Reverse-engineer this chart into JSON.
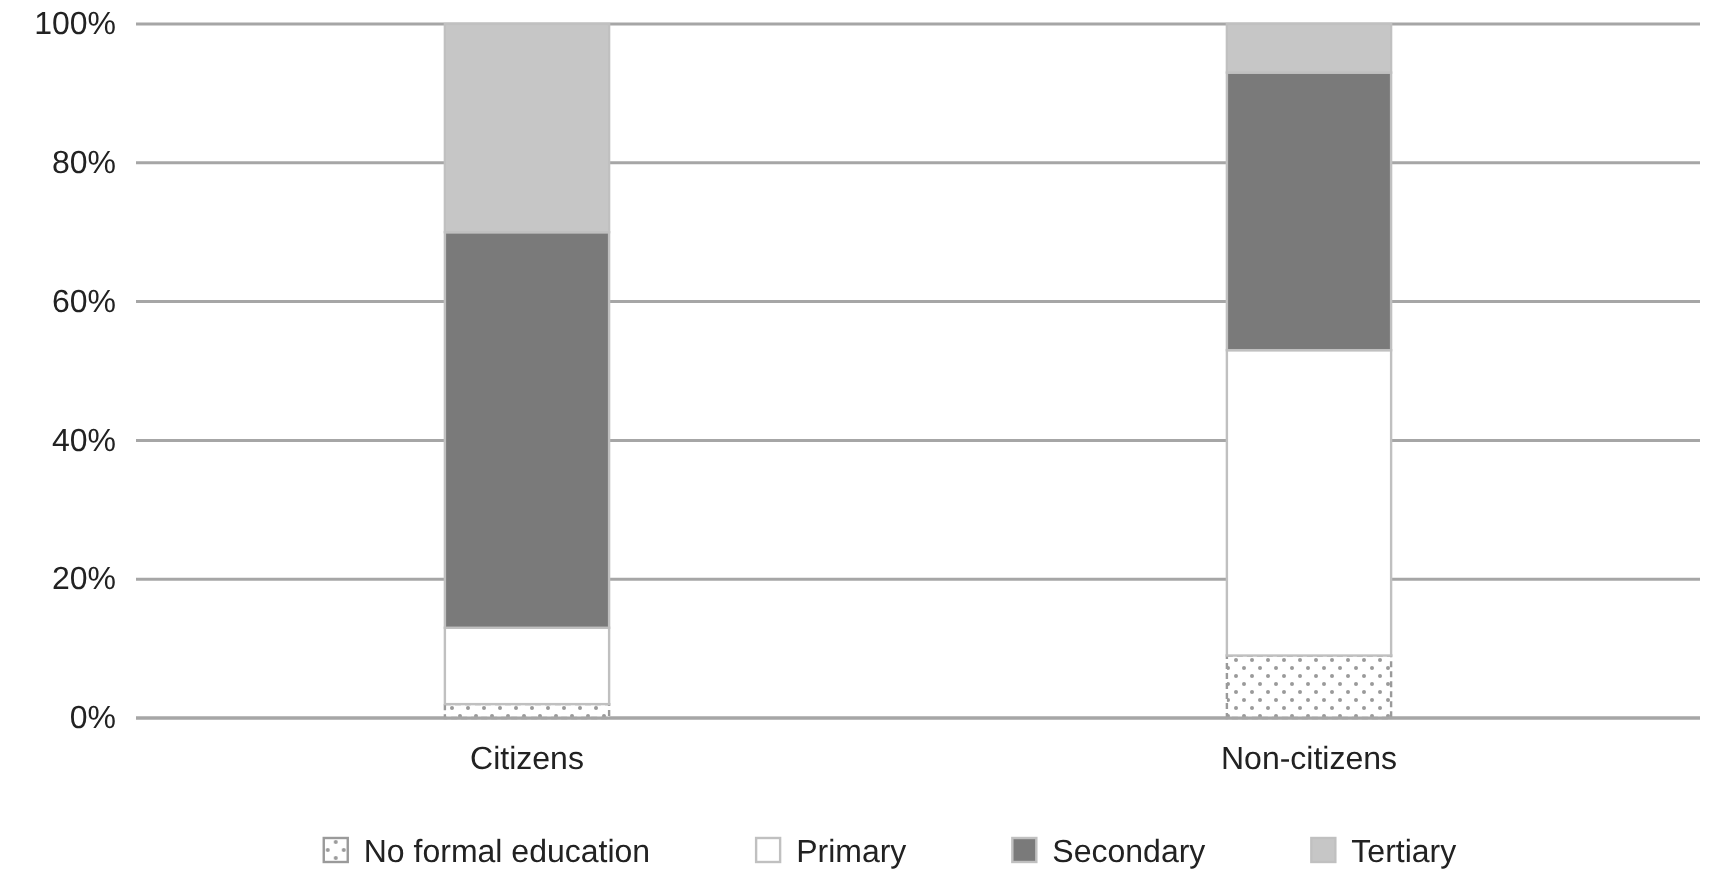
{
  "chart_data": {
    "type": "bar",
    "stacked": true,
    "categories": [
      "Citizens",
      "Non-citizens"
    ],
    "series": [
      {
        "name": "No formal education",
        "color": "#9a9a9a",
        "values": [
          2,
          9
        ]
      },
      {
        "name": "Primary",
        "color": "#ffffff",
        "values": [
          11,
          44
        ]
      },
      {
        "name": "Secondary",
        "color": "#7a7a7a",
        "values": [
          57,
          40
        ]
      },
      {
        "name": "Tertiary",
        "color": "#c6c6c6",
        "values": [
          30,
          7
        ]
      }
    ],
    "ylim": [
      0,
      100
    ],
    "yticks": [
      {
        "value": 0,
        "label": "0%"
      },
      {
        "value": 20,
        "label": "20%"
      },
      {
        "value": 40,
        "label": "40%"
      },
      {
        "value": 60,
        "label": "60%"
      },
      {
        "value": 80,
        "label": "80%"
      },
      {
        "value": 100,
        "label": "100%"
      }
    ],
    "grid": "y",
    "legend": "bottom"
  }
}
